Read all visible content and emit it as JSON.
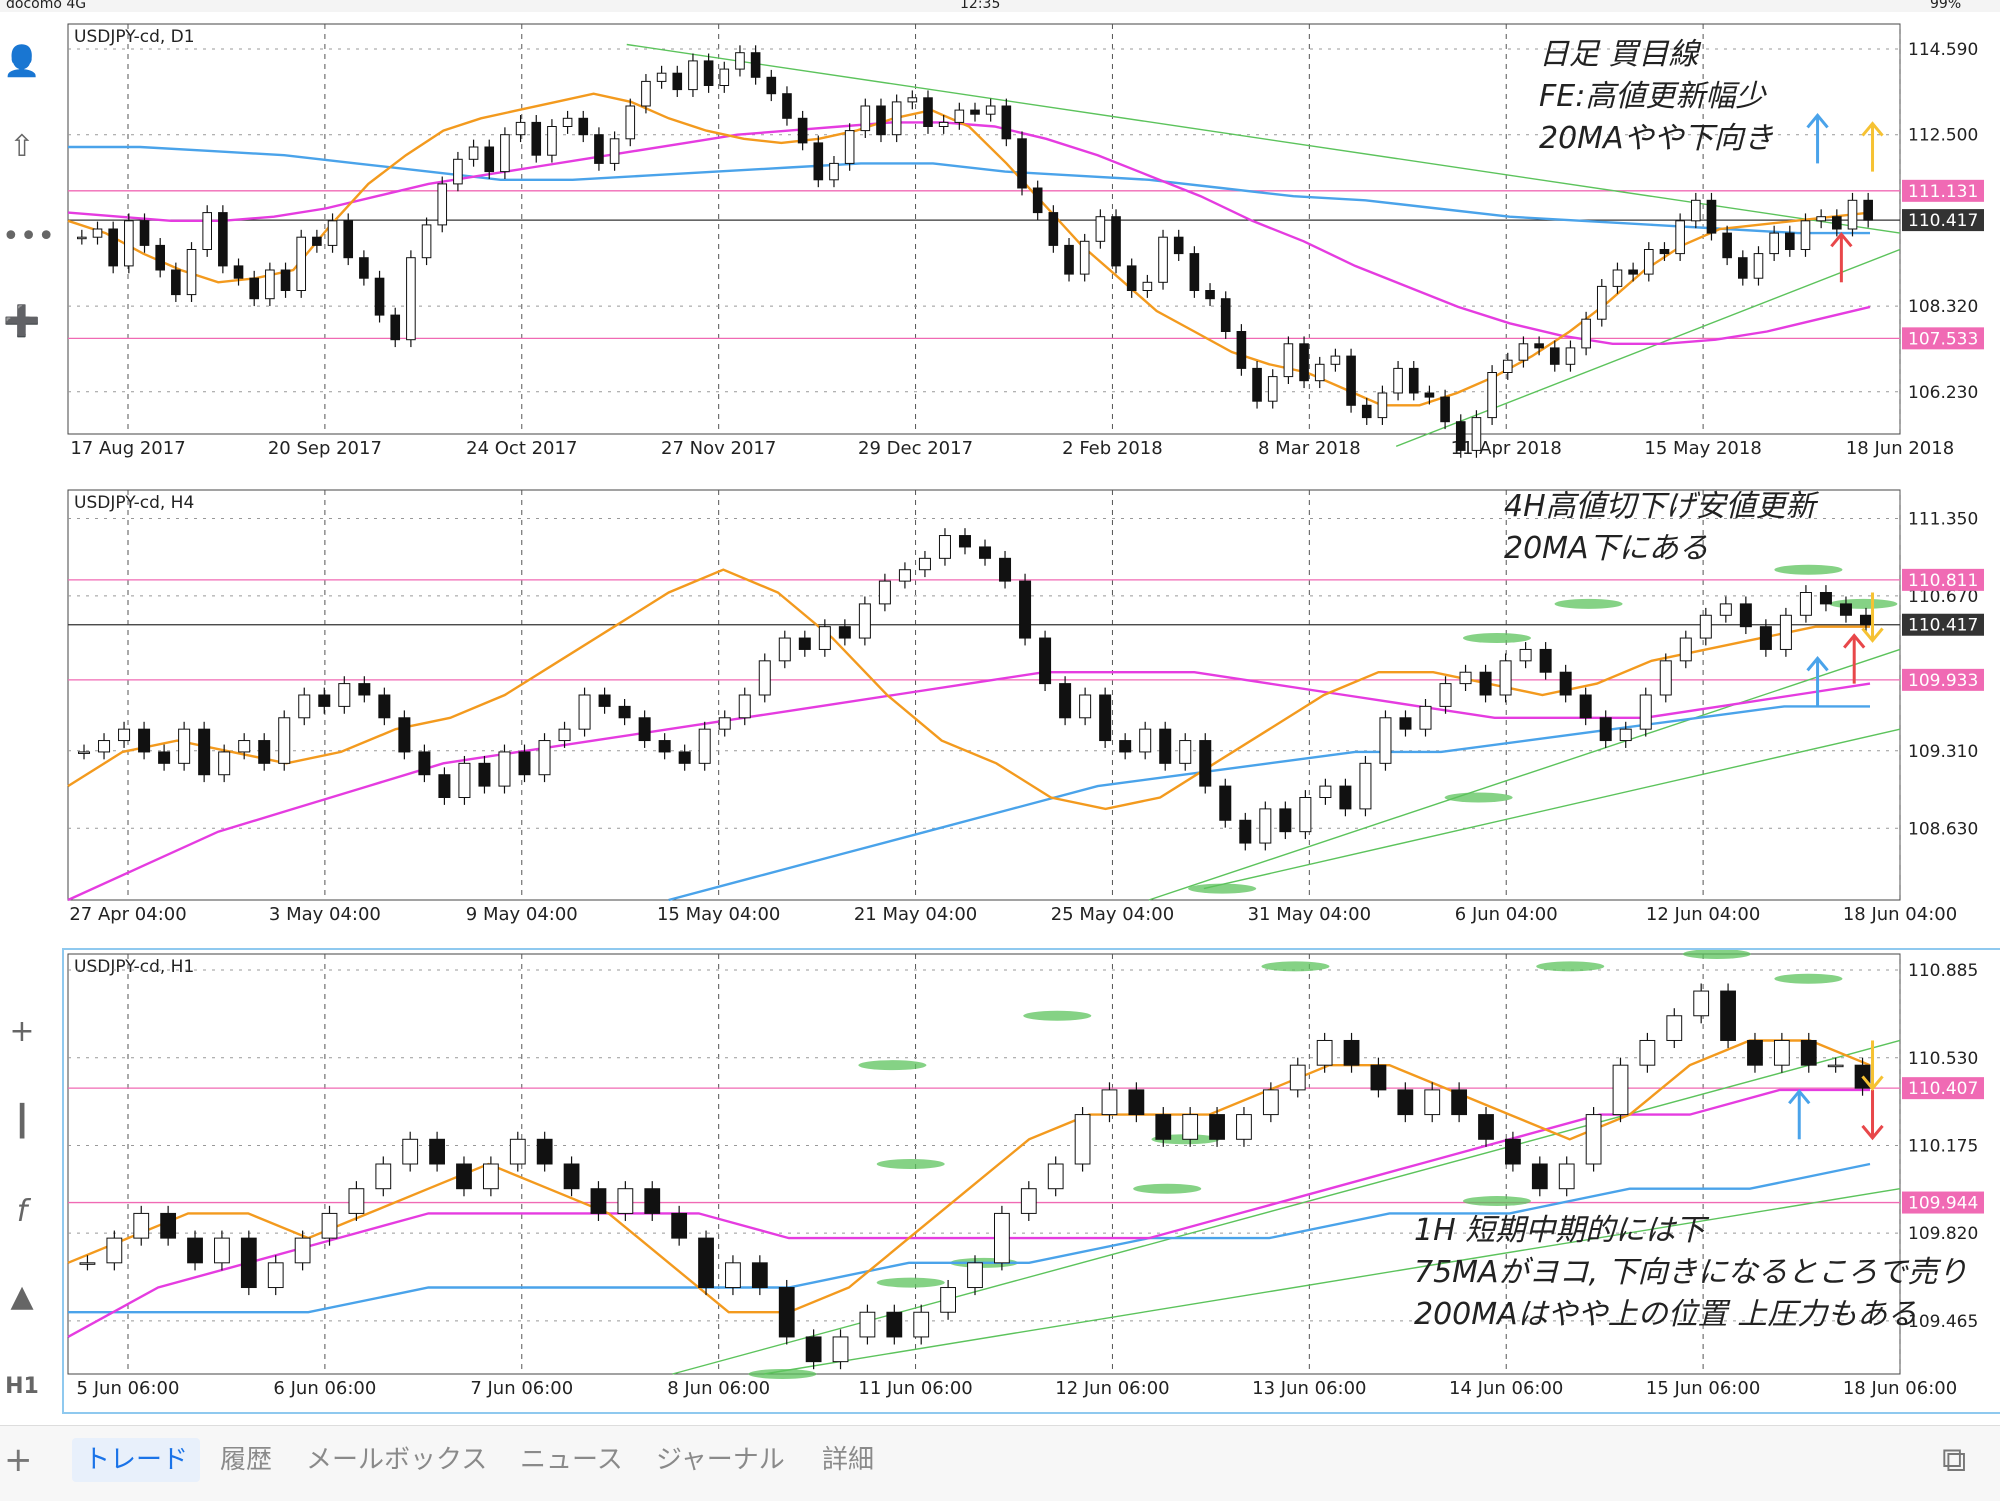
{
  "status_bar": {
    "carrier": "docomo",
    "network": "4G",
    "time": "12:35",
    "battery": "99%"
  },
  "toolbar_icons": [
    "user-icon",
    "trade-icon",
    "chat-icon",
    "add-window-icon",
    "crosshair-icon",
    "candle-type-icon",
    "function-icon",
    "objects-icon",
    "timeframe-icon"
  ],
  "timeframe_label": "H1",
  "colors": {
    "ma20": "#f39a1e",
    "ma75": "#e53ce0",
    "ma200": "#4aa3ea",
    "hline": "#f06ab4",
    "trend": "#5cc35c",
    "bull": "#ffffff",
    "bear": "#111111"
  },
  "panels": [
    {
      "id": "d1",
      "title": "USDJPY-cd, D1",
      "y_labels": [
        "114.590",
        "112.500",
        "110.417",
        "108.320",
        "106.230"
      ],
      "y_min": 105.2,
      "y_max": 115.2,
      "price_tags": [
        {
          "value": 111.131,
          "label": "111.131",
          "kind": "pink"
        },
        {
          "value": 110.417,
          "label": "110.417",
          "kind": "current"
        },
        {
          "value": 107.533,
          "label": "107.533",
          "kind": "pink"
        }
      ],
      "x_labels": [
        "17 Aug 2017",
        "20 Sep 2017",
        "24 Oct 2017",
        "27 Nov 2017",
        "29 Dec 2017",
        "2 Feb 2018",
        "8 Mar 2018",
        "11 Apr 2018",
        "15 May 2018",
        "18 Jun 2018"
      ],
      "candles": [
        110.0,
        110.2,
        109.3,
        110.4,
        109.8,
        109.2,
        108.6,
        109.7,
        110.6,
        109.3,
        109.0,
        108.5,
        109.2,
        108.7,
        110.0,
        109.8,
        110.4,
        109.5,
        109.0,
        108.1,
        107.5,
        109.5,
        110.3,
        111.3,
        111.9,
        112.2,
        111.6,
        112.5,
        112.8,
        112.0,
        112.7,
        112.9,
        112.5,
        111.8,
        112.4,
        113.2,
        113.8,
        114.0,
        113.6,
        114.3,
        113.7,
        114.1,
        114.5,
        113.9,
        113.5,
        112.9,
        112.3,
        111.4,
        111.8,
        112.6,
        113.2,
        112.5,
        113.3,
        113.4,
        112.7,
        112.8,
        113.1,
        113.0,
        113.2,
        112.4,
        111.2,
        110.6,
        109.8,
        109.1,
        109.9,
        110.5,
        109.3,
        108.7,
        108.9,
        110.0,
        109.6,
        108.7,
        108.5,
        107.7,
        106.8,
        106.0,
        106.6,
        107.4,
        106.5,
        106.9,
        107.1,
        105.9,
        105.6,
        106.2,
        106.8,
        106.2,
        106.1,
        105.5,
        104.8,
        105.6,
        106.7,
        107.0,
        107.4,
        107.3,
        106.9,
        107.3,
        108.0,
        108.8,
        109.2,
        109.1,
        109.7,
        109.6,
        110.4,
        110.9,
        110.1,
        109.5,
        109.0,
        109.6,
        110.1,
        109.7,
        110.4,
        110.5,
        110.2,
        110.9,
        110.417
      ],
      "ma20": [
        110.4,
        110.1,
        109.6,
        109.2,
        108.9,
        109.0,
        109.2,
        110.3,
        111.3,
        112.0,
        112.6,
        112.9,
        113.1,
        113.3,
        113.5,
        113.3,
        112.9,
        112.6,
        112.4,
        112.3,
        112.4,
        112.6,
        112.9,
        113.1,
        112.7,
        111.8,
        110.8,
        109.8,
        109.0,
        108.2,
        107.7,
        107.2,
        106.9,
        106.7,
        106.3,
        105.9,
        105.9,
        106.2,
        106.6,
        107.1,
        107.7,
        108.4,
        109.2,
        109.8,
        110.2,
        110.3,
        110.4,
        110.5,
        110.6
      ],
      "ma75": [
        110.6,
        110.5,
        110.4,
        110.4,
        110.5,
        110.7,
        111.0,
        111.3,
        111.5,
        111.7,
        111.9,
        112.1,
        112.3,
        112.5,
        112.6,
        112.7,
        112.8,
        112.8,
        112.7,
        112.4,
        112.0,
        111.5,
        111.0,
        110.4,
        109.9,
        109.3,
        108.8,
        108.3,
        107.9,
        107.6,
        107.4,
        107.4,
        107.5,
        107.7,
        108.0,
        108.3
      ],
      "ma200": [
        112.2,
        112.2,
        112.1,
        112.0,
        111.8,
        111.6,
        111.4,
        111.4,
        111.5,
        111.6,
        111.7,
        111.8,
        111.8,
        111.6,
        111.5,
        111.4,
        111.2,
        111.0,
        110.9,
        110.7,
        110.5,
        110.4,
        110.3,
        110.2,
        110.1,
        110.1
      ],
      "trendlines": [
        {
          "from": [
            0.305,
            114.7
          ],
          "to": [
            1.0,
            110.1
          ]
        },
        {
          "from": [
            0.725,
            104.9
          ],
          "to": [
            1.0,
            109.7
          ]
        }
      ],
      "annotation_lines": [
        "日足 買目線",
        "FE:高値更新幅少",
        "20MAやや下向き"
      ],
      "arrows": [
        {
          "x": 0.955,
          "y": 111.8,
          "dir": "up",
          "color": "#4aa3ea"
        },
        {
          "x": 0.985,
          "y": 111.6,
          "dir": "up",
          "color": "#f6c233"
        },
        {
          "x": 0.968,
          "y": 108.9,
          "dir": "up",
          "color": "#e8474a"
        }
      ]
    },
    {
      "id": "h4",
      "title": "USDJPY-cd, H4",
      "y_labels": [
        "111.350",
        "110.670",
        "110.417",
        "109.310",
        "108.630"
      ],
      "y_min": 108.0,
      "y_max": 111.6,
      "price_tags": [
        {
          "value": 110.811,
          "label": "110.811",
          "kind": "pink"
        },
        {
          "value": 110.417,
          "label": "110.417",
          "kind": "current"
        },
        {
          "value": 109.933,
          "label": "109.933",
          "kind": "pink"
        }
      ],
      "x_labels": [
        "27 Apr 04:00",
        "3 May 04:00",
        "9 May 04:00",
        "15 May 04:00",
        "21 May 04:00",
        "25 May 04:00",
        "31 May 04:00",
        "6 Jun 04:00",
        "12 Jun 04:00",
        "18 Jun 04:00"
      ],
      "candles": [
        109.3,
        109.4,
        109.5,
        109.3,
        109.2,
        109.5,
        109.1,
        109.3,
        109.4,
        109.2,
        109.6,
        109.8,
        109.7,
        109.9,
        109.8,
        109.6,
        109.3,
        109.1,
        108.9,
        109.2,
        109.0,
        109.3,
        109.1,
        109.4,
        109.5,
        109.8,
        109.7,
        109.6,
        109.4,
        109.3,
        109.2,
        109.5,
        109.6,
        109.8,
        110.1,
        110.3,
        110.2,
        110.4,
        110.3,
        110.6,
        110.8,
        110.9,
        111.0,
        111.2,
        111.1,
        111.0,
        110.8,
        110.3,
        109.9,
        109.6,
        109.8,
        109.4,
        109.3,
        109.5,
        109.2,
        109.4,
        109.0,
        108.7,
        108.5,
        108.8,
        108.6,
        108.9,
        109.0,
        108.8,
        109.2,
        109.6,
        109.5,
        109.7,
        109.9,
        110.0,
        109.8,
        110.1,
        110.2,
        110.0,
        109.8,
        109.6,
        109.4,
        109.5,
        109.8,
        110.1,
        110.3,
        110.5,
        110.6,
        110.4,
        110.2,
        110.5,
        110.7,
        110.6,
        110.5,
        110.417
      ],
      "ma20": [
        109.0,
        109.3,
        109.4,
        109.3,
        109.2,
        109.3,
        109.5,
        109.6,
        109.8,
        110.1,
        110.4,
        110.7,
        110.9,
        110.7,
        110.3,
        109.8,
        109.4,
        109.2,
        108.9,
        108.8,
        108.9,
        109.2,
        109.5,
        109.8,
        110.0,
        110.0,
        109.9,
        109.8,
        109.9,
        110.1,
        110.2,
        110.3,
        110.4,
        110.4
      ],
      "ma75": [
        108.0,
        108.3,
        108.6,
        108.8,
        109.0,
        109.2,
        109.3,
        109.4,
        109.5,
        109.6,
        109.7,
        109.8,
        109.9,
        110.0,
        110.0,
        110.0,
        109.9,
        109.8,
        109.7,
        109.6,
        109.6,
        109.6,
        109.7,
        109.8,
        109.9
      ],
      "ma200": [
        null,
        null,
        null,
        null,
        null,
        null,
        null,
        108.0,
        108.2,
        108.4,
        108.6,
        108.8,
        109.0,
        109.1,
        109.2,
        109.3,
        109.3,
        109.4,
        109.5,
        109.6,
        109.7,
        109.7
      ],
      "trendlines": [
        {
          "from": [
            0.59,
            108.0
          ],
          "to": [
            1.0,
            110.2
          ]
        },
        {
          "from": [
            0.62,
            108.1
          ],
          "to": [
            1.0,
            109.5
          ]
        },
        {
          "from": [
            0.3,
            111.6
          ],
          "to": [
            0.3,
            111.6
          ]
        }
      ],
      "annotation_lines": [
        "4H高値切下げ安値更新",
        "20MA下にある"
      ],
      "arrows": [
        {
          "x": 0.955,
          "y": 109.7,
          "dir": "up",
          "color": "#4aa3ea"
        },
        {
          "x": 0.975,
          "y": 109.9,
          "dir": "up",
          "color": "#e8474a"
        },
        {
          "x": 0.985,
          "y": 110.7,
          "dir": "down",
          "color": "#f6c233"
        }
      ],
      "green_marks": [
        [
          0.78,
          110.3
        ],
        [
          0.83,
          110.6
        ],
        [
          0.77,
          108.9
        ],
        [
          0.95,
          110.9
        ],
        [
          0.98,
          110.6
        ],
        [
          0.63,
          108.1
        ]
      ]
    },
    {
      "id": "h1",
      "title": "USDJPY-cd, H1",
      "y_labels": [
        "110.885",
        "110.530",
        "110.407",
        "110.175",
        "109.820",
        "109.465"
      ],
      "y_min": 109.25,
      "y_max": 110.95,
      "price_tags": [
        {
          "value": 110.407,
          "label": "110.407",
          "kind": "pink"
        },
        {
          "value": 109.944,
          "label": "109.944",
          "kind": "pink"
        }
      ],
      "x_labels": [
        "5 Jun 06:00",
        "6 Jun 06:00",
        "7 Jun 06:00",
        "8 Jun 06:00",
        "11 Jun 06:00",
        "12 Jun 06:00",
        "13 Jun 06:00",
        "14 Jun 06:00",
        "15 Jun 06:00",
        "18 Jun 06:00"
      ],
      "candles": [
        109.7,
        109.8,
        109.9,
        109.8,
        109.7,
        109.8,
        109.6,
        109.7,
        109.8,
        109.9,
        110.0,
        110.1,
        110.2,
        110.1,
        110.0,
        110.1,
        110.2,
        110.1,
        110.0,
        109.9,
        110.0,
        109.9,
        109.8,
        109.6,
        109.7,
        109.6,
        109.4,
        109.3,
        109.4,
        109.5,
        109.4,
        109.5,
        109.6,
        109.7,
        109.9,
        110.0,
        110.1,
        110.3,
        110.4,
        110.3,
        110.2,
        110.3,
        110.2,
        110.3,
        110.4,
        110.5,
        110.6,
        110.5,
        110.4,
        110.3,
        110.4,
        110.3,
        110.2,
        110.1,
        110.0,
        110.1,
        110.3,
        110.5,
        110.6,
        110.7,
        110.8,
        110.6,
        110.5,
        110.6,
        110.5,
        110.5,
        110.407
      ],
      "ma20": [
        109.7,
        109.8,
        109.9,
        109.9,
        109.8,
        109.9,
        110.0,
        110.1,
        110.0,
        109.9,
        109.7,
        109.5,
        109.5,
        109.6,
        109.8,
        110.0,
        110.2,
        110.3,
        110.3,
        110.3,
        110.4,
        110.5,
        110.5,
        110.4,
        110.3,
        110.2,
        110.3,
        110.5,
        110.6,
        110.6,
        110.5
      ],
      "ma75": [
        109.4,
        109.6,
        109.7,
        109.8,
        109.9,
        109.9,
        109.9,
        109.9,
        109.8,
        109.8,
        109.8,
        109.8,
        109.8,
        109.9,
        110.0,
        110.1,
        110.2,
        110.3,
        110.3,
        110.4,
        110.4
      ],
      "ma200": [
        109.5,
        109.5,
        109.5,
        109.6,
        109.6,
        109.6,
        109.6,
        109.7,
        109.7,
        109.8,
        109.8,
        109.9,
        109.9,
        110.0,
        110.0,
        110.1
      ],
      "trendlines": [
        {
          "from": [
            0.33,
            109.25
          ],
          "to": [
            1.0,
            110.6
          ]
        },
        {
          "from": [
            0.38,
            109.25
          ],
          "to": [
            1.0,
            110.0
          ]
        }
      ],
      "annotation_lines": [
        "1H 短期中期的には下",
        "75MAがヨコ, 下向きになるところで売り",
        "200MAはやや上の位置 上圧力もある"
      ],
      "arrows": [
        {
          "x": 0.945,
          "y": 110.2,
          "dir": "up",
          "color": "#4aa3ea"
        },
        {
          "x": 0.985,
          "y": 110.4,
          "dir": "down",
          "color": "#e8474a"
        },
        {
          "x": 0.985,
          "y": 110.6,
          "dir": "down",
          "color": "#f6c233"
        }
      ],
      "green_marks": [
        [
          0.54,
          110.7
        ],
        [
          0.67,
          110.9
        ],
        [
          0.82,
          110.9
        ],
        [
          0.9,
          110.95
        ],
        [
          0.95,
          110.85
        ],
        [
          0.45,
          110.5
        ],
        [
          0.46,
          110.1
        ],
        [
          0.6,
          110.0
        ],
        [
          0.61,
          110.2
        ],
        [
          0.5,
          109.7
        ],
        [
          0.78,
          109.95
        ],
        [
          0.39,
          109.25
        ],
        [
          0.46,
          109.62
        ]
      ]
    }
  ],
  "bottom_tabs": [
    "トレード",
    "履歴",
    "メールボックス",
    "ニュース",
    "ジャーナル",
    "詳細"
  ],
  "active_tab": 0
}
